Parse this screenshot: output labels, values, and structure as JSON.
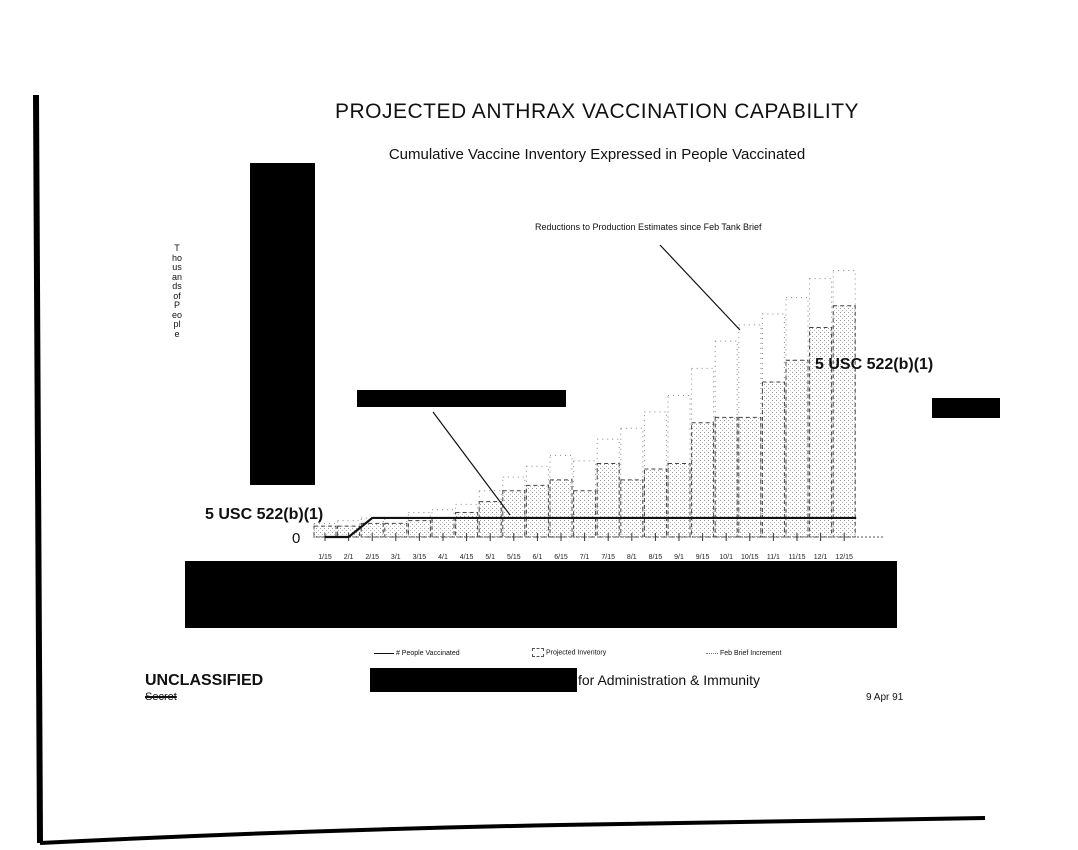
{
  "title": "PROJECTED ANTHRAX VACCINATION CAPABILITY",
  "subtitle": "Cumulative Vaccine Inventory Expressed in People Vaccinated",
  "annotation": "Reductions to Production Estimates since Feb Tank Brief",
  "exemption_labels": [
    "5 USC 522(b)(1)",
    "5 USC 522(b)(1)"
  ],
  "footer": {
    "classification": "UNCLASSIFIED",
    "struck_classification": "Secret",
    "office_text": "for Administration & Immunity",
    "date": "9 Apr 91"
  },
  "colors": {
    "ink": "#111111",
    "redaction": "#000000",
    "stipple": "#9a9a9a"
  },
  "chart_data": {
    "type": "bar",
    "title": "PROJECTED ANTHRAX VACCINATION CAPABILITY",
    "subtitle": "Cumulative Vaccine Inventory Expressed in People Vaccinated",
    "ylabel": "Thousands of People",
    "xlabel": "",
    "y_tick_labels": [
      "0"
    ],
    "y_scale_note": "values estimated on a relative scale; y-axis numeric ticks redacted",
    "ylim": [
      0,
      100
    ],
    "grid": false,
    "legend_position": "bottom",
    "categories": [
      "1/15",
      "2/1",
      "2/15",
      "3/1",
      "3/15",
      "4/1",
      "4/15",
      "5/1",
      "5/15",
      "6/1",
      "6/15",
      "7/1",
      "7/15",
      "8/1",
      "8/15",
      "9/1",
      "9/15",
      "10/1",
      "10/15",
      "11/1",
      "11/15",
      "12/1",
      "12/15"
    ],
    "series": [
      {
        "name": "# People Vaccinated",
        "type": "line",
        "values": [
          0,
          0,
          7,
          7,
          7,
          7,
          7,
          7,
          7,
          7,
          7,
          7,
          7,
          7,
          7,
          7,
          7,
          7,
          7,
          7,
          7,
          7,
          7
        ]
      },
      {
        "name": "Projected Inventory",
        "type": "bar",
        "values": [
          4,
          4,
          5,
          5,
          6,
          7,
          9,
          13,
          17,
          19,
          21,
          17,
          27,
          21,
          25,
          27,
          42,
          44,
          44,
          57,
          65,
          77,
          85
        ]
      },
      {
        "name": "Feb Brief Increment",
        "type": "bar",
        "values": [
          5,
          6,
          7,
          7,
          9,
          10,
          12,
          17,
          22,
          26,
          30,
          28,
          36,
          40,
          46,
          52,
          62,
          72,
          78,
          82,
          88,
          95,
          98
        ]
      }
    ]
  }
}
